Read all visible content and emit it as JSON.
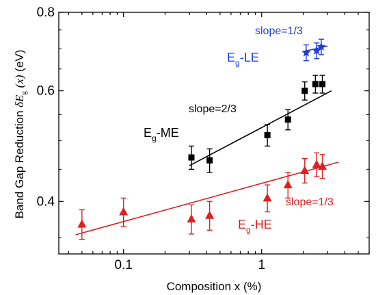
{
  "chart_data": {
    "type": "scatter",
    "x_scale": "log",
    "y_scale": "log",
    "xlim": [
      0.034,
      6.0
    ],
    "ylim": [
      0.33,
      0.8
    ],
    "xlabel": "Composition x (%)",
    "ylabel": {
      "prefix": "Band Gap Reduction ",
      "delta": "δE",
      "sub": "g",
      "x": "(x)",
      "unit": "(eV)"
    },
    "x_ticks": [
      {
        "value": 0.1,
        "label": "0.1"
      },
      {
        "value": 1,
        "label": "1"
      }
    ],
    "y_ticks": [
      {
        "value": 0.4,
        "label": "0.4"
      },
      {
        "value": 0.6,
        "label": "0.6"
      },
      {
        "value": 0.8,
        "label": "0.8"
      }
    ],
    "grid": false,
    "series": [
      {
        "label_base": "E",
        "label_sub": "g",
        "label_rest": "-LE",
        "color": "#1e3cdc",
        "marker": "star",
        "points": [
          {
            "x": 2.1,
            "y": 0.69,
            "err": 0.02
          },
          {
            "x": 2.5,
            "y": 0.695,
            "err": 0.02
          },
          {
            "x": 2.7,
            "y": 0.705,
            "err": 0.02
          }
        ],
        "fit": {
          "x": [
            2.0,
            3.0
          ],
          "y": [
            0.693,
            0.707
          ]
        },
        "slope_label": "slope=1/3"
      },
      {
        "label_base": "E",
        "label_sub": "g",
        "label_rest": "-ME",
        "color": "#000000",
        "marker": "square",
        "points": [
          {
            "x": 0.31,
            "y": 0.47,
            "err": 0.02
          },
          {
            "x": 0.42,
            "y": 0.465,
            "err": 0.02
          },
          {
            "x": 1.1,
            "y": 0.51,
            "err": 0.02
          },
          {
            "x": 1.55,
            "y": 0.54,
            "err": 0.02
          },
          {
            "x": 2.05,
            "y": 0.6,
            "err": 0.02
          },
          {
            "x": 2.45,
            "y": 0.615,
            "err": 0.02
          },
          {
            "x": 2.75,
            "y": 0.615,
            "err": 0.02
          }
        ],
        "fit": {
          "x": [
            0.3,
            3.2
          ],
          "y": [
            0.456,
            0.6
          ]
        },
        "slope_label": "slope=2/3"
      },
      {
        "label_base": "E",
        "label_sub": "g",
        "label_rest": "-HE",
        "color": "#e02020",
        "marker": "triangle",
        "points": [
          {
            "x": 0.05,
            "y": 0.368,
            "err": 0.02
          },
          {
            "x": 0.1,
            "y": 0.385,
            "err": 0.02
          },
          {
            "x": 0.31,
            "y": 0.375,
            "err": 0.02
          },
          {
            "x": 0.42,
            "y": 0.38,
            "err": 0.02
          },
          {
            "x": 1.1,
            "y": 0.405,
            "err": 0.02
          },
          {
            "x": 1.55,
            "y": 0.425,
            "err": 0.02
          },
          {
            "x": 2.05,
            "y": 0.448,
            "err": 0.02
          },
          {
            "x": 2.5,
            "y": 0.458,
            "err": 0.02
          },
          {
            "x": 2.75,
            "y": 0.455,
            "err": 0.02
          }
        ],
        "fit": {
          "x": [
            0.045,
            3.6
          ],
          "y": [
            0.354,
            0.462
          ]
        },
        "slope_label": "slope=1/3"
      }
    ]
  }
}
